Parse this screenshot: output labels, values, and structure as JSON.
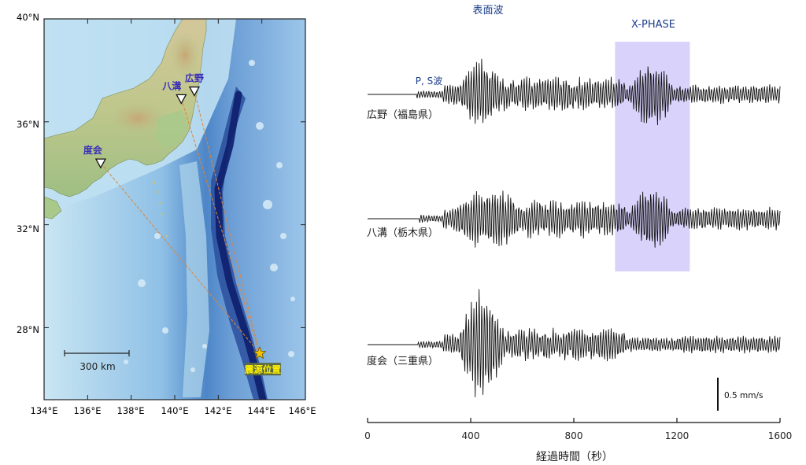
{
  "map": {
    "lat_labels": [
      "40°N",
      "36°N",
      "32°N",
      "28°N"
    ],
    "lon_labels": [
      "134°E",
      "136°E",
      "138°E",
      "140°E",
      "142°E",
      "144°E",
      "146°E"
    ],
    "scale_bar_label": "300 km",
    "stations": [
      {
        "name": "広野",
        "lon": 140.9,
        "lat": 37.2
      },
      {
        "name": "八溝",
        "lon": 140.3,
        "lat": 36.9
      },
      {
        "name": "度会",
        "lon": 136.6,
        "lat": 34.4
      }
    ],
    "epicenter": {
      "label": "震源位置",
      "lon": 143.9,
      "lat": 27.0
    },
    "colors": {
      "land": "#b8c48c",
      "shelf": "#d8ecf5",
      "deep_ocean": "#4a82c6",
      "trench": "#12267a",
      "ray": "#e0853a",
      "station_label": "#3a2fb8",
      "epicenter_star": "#f5c400",
      "epicenter_label_bg": "#5d6c45",
      "epicenter_label_text": "#fff200"
    }
  },
  "seismogram": {
    "annotations": {
      "surface_wave": "表面波",
      "x_phase": "X-PHASE",
      "ps_wave": "P, S波"
    },
    "x_phase_window": [
      960,
      1250
    ],
    "traces": [
      {
        "station": "広野（福島県）"
      },
      {
        "station": "八溝（栃木県）"
      },
      {
        "station": "度会（三重県）"
      }
    ],
    "amplitude_scale_label": "0.5 mm/s",
    "x_axis": {
      "label": "経過時間（秒）",
      "ticks": [
        "0",
        "400",
        "800",
        "1200",
        "1600"
      ],
      "range": [
        0,
        1600
      ]
    },
    "colors": {
      "trace": "#111111",
      "x_phase_band": "#d9d3fb",
      "annotation": "#1c3d8a"
    }
  }
}
